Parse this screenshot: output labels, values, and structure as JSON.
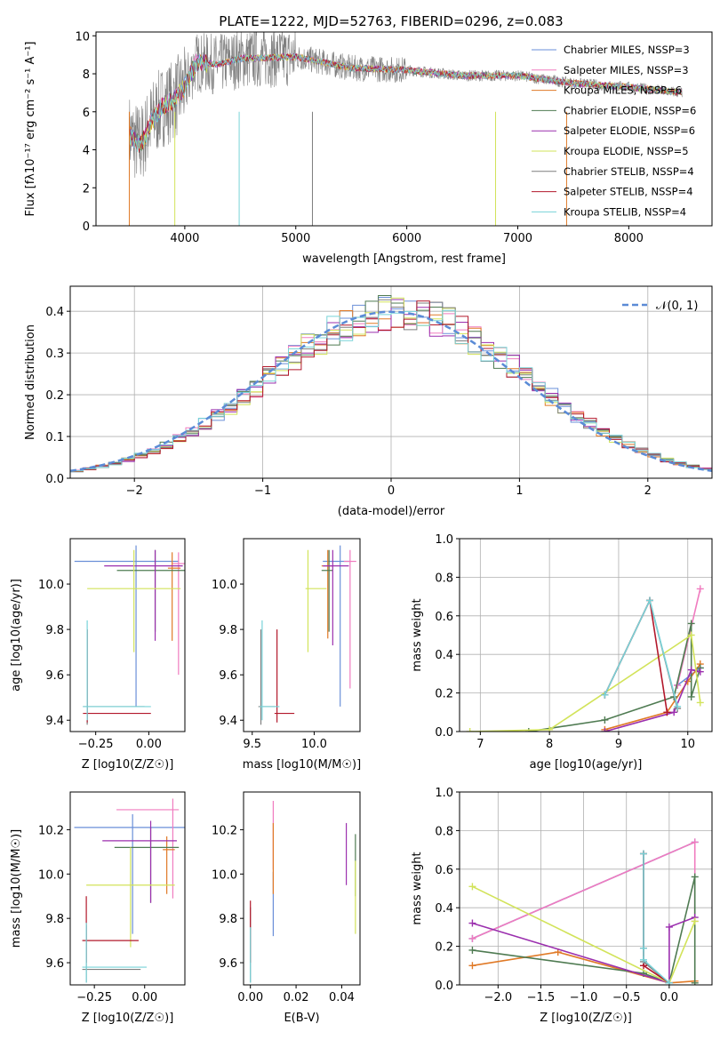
{
  "figure_title": "PLATE=1222, MJD=52763, FIBERID=0296, z=0.083",
  "palette": [
    "#6a8fd8",
    "#f07bbf",
    "#e07a27",
    "#4f7b52",
    "#9b2fae",
    "#d2e35a",
    "#7f7f7f",
    "#b2182b",
    "#78d3d8"
  ],
  "chart_data": [
    {
      "id": "spectrum",
      "type": "line",
      "title": "PLATE=1222, MJD=52763, FIBERID=0296, z=0.083",
      "xlabel": "wavelength [Angstrom, rest frame]",
      "ylabel": "Flux [fλ10⁻¹⁷ erg cm⁻² s⁻¹ A⁻¹]",
      "xlim": [
        3200,
        8750
      ],
      "ylim": [
        0,
        10.2
      ],
      "xticks": [
        4000,
        5000,
        6000,
        7000,
        8000
      ],
      "yticks": [
        0,
        2,
        4,
        6,
        8,
        10
      ],
      "legend_position": "right",
      "legend": [
        "Chabrier MILES, NSSP=3",
        "Salpeter MILES, NSSP=3",
        "Kroupa MILES, NSSP=6",
        "Chabrier ELODIE, NSSP=6",
        "Salpeter ELODIE, NSSP=6",
        "Kroupa ELODIE, NSSP=5",
        "Chabrier STELIB, NSSP=4",
        "Salpeter STELIB, NSSP=4",
        "Kroupa STELIB, NSSP=4"
      ],
      "data_range": [
        3500,
        8480
      ],
      "model_level": [
        [
          3500,
          4.8
        ],
        [
          3600,
          4.2
        ],
        [
          3700,
          5.5
        ],
        [
          3800,
          6.3
        ],
        [
          3900,
          6.6
        ],
        [
          4000,
          7.3
        ],
        [
          4100,
          8.6
        ],
        [
          4300,
          8.5
        ],
        [
          4500,
          8.8
        ],
        [
          5000,
          8.9
        ],
        [
          5500,
          8.3
        ],
        [
          6000,
          8.2
        ],
        [
          6500,
          7.9
        ],
        [
          7000,
          7.9
        ],
        [
          7500,
          7.5
        ],
        [
          8000,
          7.3
        ],
        [
          8480,
          7.0
        ]
      ]
    },
    {
      "id": "residuals",
      "type": "line",
      "xlabel": "(data-model)/error",
      "ylabel": "Normed distribution",
      "xlim": [
        -2.5,
        2.5
      ],
      "ylim": [
        0,
        0.46
      ],
      "xticks": [
        -2,
        -1,
        0,
        1,
        2
      ],
      "xtick_labels": [
        "−2",
        "−1",
        "0",
        "1",
        "2"
      ],
      "yticks": [
        0.0,
        0.1,
        0.2,
        0.3,
        0.4
      ],
      "legend": [
        "𝒩(0, 1)"
      ],
      "legend_position": "top-right",
      "grid": true
    },
    {
      "id": "age-vs-Z",
      "type": "scatter",
      "xlabel": "Z [log10(Z/Z☉)]",
      "ylabel": "age  [log10(age/yr)]",
      "xlim": [
        -0.37,
        0.17
      ],
      "ylim": [
        9.35,
        10.2
      ],
      "xticks": [
        -0.25,
        0.0
      ],
      "xtick_labels": [
        "−0.25",
        "0.00"
      ],
      "yticks": [
        9.4,
        9.6,
        9.8,
        10.0
      ],
      "series": [
        {
          "x": -0.06,
          "y": 10.1,
          "xerr": [
            0.29,
            0.2
          ],
          "yerr": [
            0.64,
            0.07
          ]
        },
        {
          "x": 0.14,
          "y": 10.09,
          "xerr": [
            0.03,
            0.03
          ],
          "yerr": [
            0.49,
            0.05
          ]
        },
        {
          "x": 0.11,
          "y": 10.07,
          "xerr": [
            0.02,
            0.04
          ],
          "yerr": [
            0.32,
            0.07
          ]
        },
        {
          "x": 0.03,
          "y": 10.06,
          "xerr": [
            0.18,
            0.14
          ],
          "yerr": [
            0.27,
            0.09
          ]
        },
        {
          "x": 0.03,
          "y": 10.08,
          "xerr": [
            0.24,
            0.13
          ],
          "yerr": [
            0.33,
            0.07
          ]
        },
        {
          "x": -0.07,
          "y": 9.98,
          "xerr": [
            0.22,
            0.22
          ],
          "yerr": [
            0.28,
            0.17
          ]
        },
        {
          "x": -0.29,
          "y": 9.46,
          "xerr": [
            0.02,
            0.27
          ],
          "yerr": [
            0.08,
            0.34
          ]
        },
        {
          "x": -0.29,
          "y": 9.43,
          "xerr": [
            0.02,
            0.3
          ],
          "yerr": [
            0.04,
            0.37
          ]
        },
        {
          "x": -0.29,
          "y": 9.46,
          "xerr": [
            0.02,
            0.3
          ],
          "yerr": [
            0.06,
            0.38
          ]
        }
      ]
    },
    {
      "id": "age-vs-mass",
      "type": "scatter",
      "xlabel": "mass [log10(M/M☉)]",
      "ylabel": "",
      "xlim": [
        9.43,
        10.37
      ],
      "ylim": [
        9.35,
        10.2
      ],
      "xticks": [
        9.5,
        10.0
      ],
      "xtick_labels": [
        "9.5",
        "10.0"
      ],
      "yticks": [
        9.4,
        9.6,
        9.8,
        10.0
      ],
      "series": [
        {
          "x": 10.21,
          "y": 10.1,
          "xerr": [
            0.14,
            0.08
          ],
          "yerr": [
            0.64,
            0.07
          ]
        },
        {
          "x": 10.29,
          "y": 10.1,
          "xerr": [
            0.05,
            0.05
          ],
          "yerr": [
            0.56,
            0.05
          ]
        },
        {
          "x": 10.11,
          "y": 10.08,
          "xerr": [
            0.05,
            0.04
          ],
          "yerr": [
            0.32,
            0.07
          ]
        },
        {
          "x": 10.12,
          "y": 10.06,
          "xerr": [
            0.06,
            0.03
          ],
          "yerr": [
            0.27,
            0.09
          ]
        },
        {
          "x": 10.15,
          "y": 10.08,
          "xerr": [
            0.08,
            0.13
          ],
          "yerr": [
            0.35,
            0.07
          ]
        },
        {
          "x": 9.95,
          "y": 9.98,
          "xerr": [
            0.02,
            0.15
          ],
          "yerr": [
            0.28,
            0.17
          ]
        },
        {
          "x": 9.57,
          "y": 9.46,
          "xerr": [
            0.02,
            0.13
          ],
          "yerr": [
            0.08,
            0.34
          ]
        },
        {
          "x": 9.7,
          "y": 9.43,
          "xerr": [
            0.02,
            0.14
          ],
          "yerr": [
            0.04,
            0.37
          ]
        },
        {
          "x": 9.58,
          "y": 9.46,
          "xerr": [
            0.02,
            0.14
          ],
          "yerr": [
            0.06,
            0.38
          ]
        }
      ]
    },
    {
      "id": "weight-vs-age",
      "type": "line",
      "xlabel": "age  [log10(age/yr)]",
      "ylabel": "mass weight",
      "xlim": [
        6.7,
        10.35
      ],
      "ylim": [
        0,
        1.0
      ],
      "xticks": [
        7,
        8,
        9,
        10
      ],
      "yticks": [
        0.0,
        0.2,
        0.4,
        0.6,
        0.8,
        1.0
      ],
      "grid": true,
      "series": [
        {
          "x": [
            9.85,
            10.18
          ],
          "y": [
            0.24,
            0.33
          ]
        },
        {
          "x": [
            9.85,
            10.18
          ],
          "y": [
            0.24,
            0.74
          ]
        },
        {
          "x": [
            8.8,
            9.7,
            10.0,
            10.18
          ],
          "y": [
            0.01,
            0.1,
            0.26,
            0.35
          ]
        },
        {
          "x": [
            7.7,
            8.8,
            9.8,
            10.05,
            10.05,
            10.18
          ],
          "y": [
            0.0,
            0.06,
            0.18,
            0.56,
            0.18,
            0.33
          ]
        },
        {
          "x": [
            8.8,
            9.8,
            10.05,
            10.18
          ],
          "y": [
            0.0,
            0.1,
            0.32,
            0.31
          ]
        },
        {
          "x": [
            6.85,
            8.0,
            10.05,
            10.18
          ],
          "y": [
            0.0,
            0.01,
            0.5,
            0.15
          ]
        },
        {
          "x": [
            8.8,
            9.45,
            9.85
          ],
          "y": [
            0.19,
            0.68,
            0.12
          ]
        },
        {
          "x": [
            8.8,
            9.45,
            9.7
          ],
          "y": [
            0.19,
            0.68,
            0.1
          ]
        },
        {
          "x": [
            8.8,
            9.45,
            9.85
          ],
          "y": [
            0.19,
            0.68,
            0.13
          ]
        }
      ]
    },
    {
      "id": "mass-vs-Z",
      "type": "scatter",
      "xlabel": "Z [log10(Z/Z☉)]",
      "ylabel": "mass [log10(M/M☉)]",
      "xlim": [
        -0.37,
        0.2
      ],
      "ylim": [
        9.5,
        10.37
      ],
      "xticks": [
        -0.25,
        0.0
      ],
      "xtick_labels": [
        "−0.25",
        "0.00"
      ],
      "yticks": [
        9.6,
        9.8,
        10.0,
        10.2
      ],
      "series": [
        {
          "x": -0.06,
          "y": 10.21,
          "xerr": [
            0.29,
            0.26
          ],
          "yerr": [
            0.48,
            0.06
          ]
        },
        {
          "x": 0.14,
          "y": 10.29,
          "xerr": [
            0.28,
            0.03
          ],
          "yerr": [
            0.4,
            0.05
          ]
        },
        {
          "x": 0.11,
          "y": 10.11,
          "xerr": [
            0.02,
            0.04
          ],
          "yerr": [
            0.2,
            0.06
          ]
        },
        {
          "x": 0.03,
          "y": 10.12,
          "xerr": [
            0.18,
            0.14
          ],
          "yerr": [
            0.25,
            0.09
          ]
        },
        {
          "x": 0.03,
          "y": 10.15,
          "xerr": [
            0.24,
            0.13
          ],
          "yerr": [
            0.28,
            0.09
          ]
        },
        {
          "x": -0.07,
          "y": 9.95,
          "xerr": [
            0.22,
            0.22
          ],
          "yerr": [
            0.28,
            0.17
          ]
        },
        {
          "x": -0.29,
          "y": 9.57,
          "xerr": [
            0.02,
            0.27
          ],
          "yerr": [
            0.06,
            0.2
          ]
        },
        {
          "x": -0.29,
          "y": 9.7,
          "xerr": [
            0.02,
            0.26
          ],
          "yerr": [
            0.1,
            0.2
          ]
        },
        {
          "x": -0.29,
          "y": 9.58,
          "xerr": [
            0.02,
            0.3
          ],
          "yerr": [
            0.07,
            0.2
          ]
        }
      ]
    },
    {
      "id": "mass-vs-EBV",
      "type": "scatter",
      "xlabel": "E(B-V)",
      "ylabel": "",
      "xlim": [
        -0.003,
        0.048
      ],
      "ylim": [
        9.5,
        10.37
      ],
      "xticks": [
        0.0,
        0.02,
        0.04
      ],
      "xtick_labels": [
        "0.00",
        "0.02",
        "0.04"
      ],
      "yticks": [
        9.6,
        9.8,
        10.0,
        10.2
      ],
      "series": [
        {
          "x": 0.01,
          "y": 9.85,
          "yerr": [
            0.13,
            0.16
          ]
        },
        {
          "x": 0.01,
          "y": 10.15,
          "yerr": [
            0.13,
            0.18
          ]
        },
        {
          "x": 0.01,
          "y": 10.05,
          "yerr": [
            0.14,
            0.18
          ]
        },
        {
          "x": 0.046,
          "y": 10.1,
          "yerr": [
            0.2,
            0.08
          ]
        },
        {
          "x": 0.042,
          "y": 10.1,
          "yerr": [
            0.15,
            0.13
          ]
        },
        {
          "x": 0.046,
          "y": 9.9,
          "yerr": [
            0.17,
            0.16
          ]
        },
        {
          "x": 0.0,
          "y": 9.65,
          "yerr": [
            0.14,
            0.2
          ]
        },
        {
          "x": 0.0,
          "y": 9.75,
          "yerr": [
            0.15,
            0.13
          ]
        },
        {
          "x": 0.0,
          "y": 9.6,
          "yerr": [
            0.09,
            0.16
          ]
        }
      ]
    },
    {
      "id": "weight-vs-Z",
      "type": "line",
      "xlabel": "Z [log10(Z/Z☉)]",
      "ylabel": "mass weight",
      "xlim": [
        -2.45,
        0.5
      ],
      "ylim": [
        0,
        1.0
      ],
      "xticks": [
        -2.0,
        -1.5,
        -1.0,
        -0.5,
        0.0
      ],
      "xtick_labels": [
        "−2.0",
        "−1.5",
        "−1.0",
        "−0.5",
        "0.0"
      ],
      "yticks": [
        0.0,
        0.2,
        0.4,
        0.6,
        0.8,
        1.0
      ],
      "grid": true,
      "series": [
        {
          "x": [
            -2.3,
            0.3
          ],
          "y": [
            0.24,
            0.74
          ]
        },
        {
          "x": [
            -2.3,
            0.3,
            0.3
          ],
          "y": [
            0.24,
            0.74,
            0.33
          ]
        },
        {
          "x": [
            -2.3,
            -1.3,
            0.0,
            0.3
          ],
          "y": [
            0.1,
            0.17,
            0.01,
            0.02
          ]
        },
        {
          "x": [
            -2.3,
            -0.3,
            0.0,
            0.3,
            0.3
          ],
          "y": [
            0.18,
            0.06,
            0.01,
            0.56,
            0.01
          ]
        },
        {
          "x": [
            -2.3,
            0.0,
            0.0,
            0.3
          ],
          "y": [
            0.32,
            0.01,
            0.3,
            0.35
          ]
        },
        {
          "x": [
            -2.3,
            0.0,
            0.3
          ],
          "y": [
            0.51,
            0.01,
            0.33
          ]
        },
        {
          "x": [
            -0.3,
            -0.3,
            -0.3,
            0.0
          ],
          "y": [
            0.68,
            0.19,
            0.12,
            0.01
          ]
        },
        {
          "x": [
            -0.3,
            -0.3,
            -0.3,
            0.0
          ],
          "y": [
            0.68,
            0.19,
            0.1,
            0.01
          ]
        },
        {
          "x": [
            -0.3,
            -0.3,
            -0.3,
            0.0
          ],
          "y": [
            0.68,
            0.19,
            0.13,
            0.01
          ]
        }
      ]
    }
  ]
}
